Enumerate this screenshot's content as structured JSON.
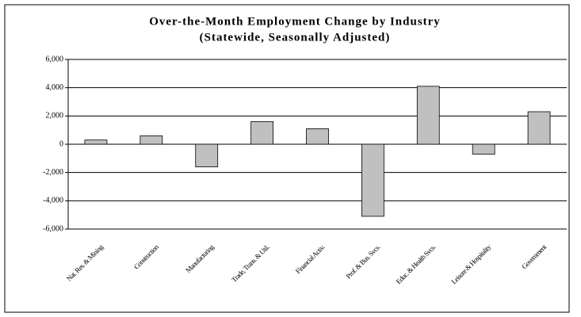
{
  "chart_data": {
    "type": "bar",
    "title": "Over-the-Month Employment Change by Industry",
    "subtitle": "(Statewide, Seasonally Adjusted)",
    "categories": [
      "Nat. Res. & Mining",
      "Construction",
      "Manufacturing",
      "Trade, Trans. & Util.",
      "Financial Activ.",
      "Prof. & Bus. Svcs.",
      "Educ. & Health Svcs.",
      "Leisure & Hospitality",
      "Government"
    ],
    "values": [
      300,
      600,
      -1600,
      1600,
      1100,
      -5100,
      4100,
      -700,
      2300
    ],
    "color": "#c0c0c0",
    "ylim": [
      -6000,
      6000
    ],
    "yticks": [
      {
        "value": -6000,
        "label": "-6,000"
      },
      {
        "value": -4000,
        "label": "-4,000"
      },
      {
        "value": -2000,
        "label": "-2,000"
      },
      0,
      {
        "value": 2000,
        "label": "2,000"
      },
      {
        "value": 4000,
        "label": "4,000"
      },
      {
        "value": 6000,
        "label": "6,000"
      }
    ],
    "grid": true
  }
}
